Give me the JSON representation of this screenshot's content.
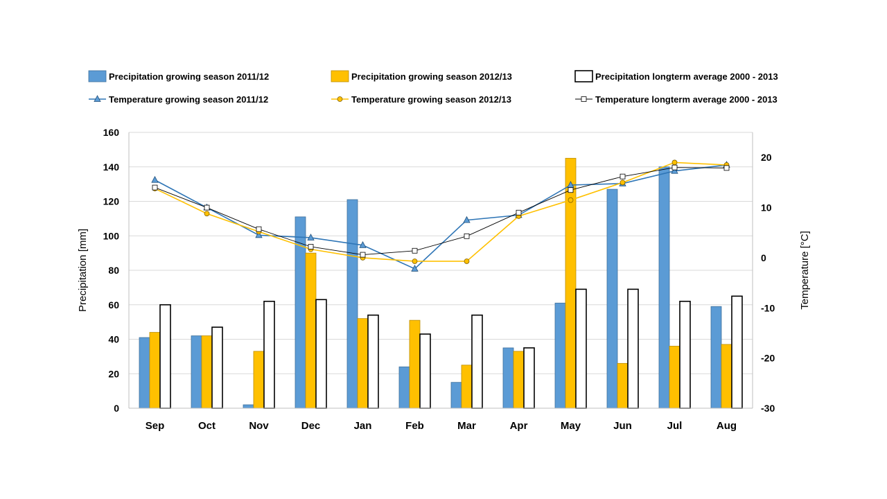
{
  "chart_data": {
    "type": "bar+line",
    "categories": [
      "Sep",
      "Oct",
      "Nov",
      "Dec",
      "Jan",
      "Feb",
      "Mar",
      "Apr",
      "May",
      "Jun",
      "Jul",
      "Aug"
    ],
    "ylabel_left": "Precipitation [mm]",
    "ylabel_right": "Temperature [°C]",
    "ylim_left": [
      0,
      160
    ],
    "ylim_right": [
      -30,
      25
    ],
    "yticks_left": [
      0,
      20,
      40,
      60,
      80,
      100,
      120,
      140,
      160
    ],
    "yticks_right": [
      -30,
      -20,
      -10,
      0,
      10,
      20
    ],
    "grid": true,
    "legend_position": "top",
    "bar_series": [
      {
        "name": "Precipitation growing season 2011/12",
        "color": "#5b9bd5",
        "values": [
          41,
          42,
          2,
          111,
          121,
          24,
          15,
          35,
          61,
          127,
          140,
          59
        ]
      },
      {
        "name": "Precipitation growing season 2012/13",
        "color": "#ffc000",
        "values": [
          44,
          42,
          33,
          90,
          52,
          51,
          25,
          33,
          145,
          26,
          36,
          37
        ]
      },
      {
        "name": "Precipitation longterm average 2000 - 2013",
        "color": "#ffffff",
        "values": [
          60,
          47,
          62,
          63,
          54,
          43,
          54,
          35,
          69,
          69,
          62,
          65
        ]
      }
    ],
    "line_series": [
      {
        "name": "Temperature growing season 2011/12",
        "color": "#2e75b6",
        "marker": "triangle",
        "values": [
          15.5,
          10,
          4.5,
          4,
          2.5,
          -2.2,
          7.5,
          8.5,
          14.5,
          14.8,
          17.3,
          18.5
        ]
      },
      {
        "name": "Temperature growing season 2012/13",
        "color": "#ffc000",
        "marker": "circle",
        "values": [
          13.8,
          8.8,
          5.2,
          1.7,
          0,
          -0.7,
          -0.7,
          8.3,
          11.5,
          15,
          19,
          18.5
        ]
      },
      {
        "name": "Temperature longterm average 2000 - 2013",
        "color": "#000000",
        "marker": "square",
        "values": [
          14,
          10,
          5.7,
          2.2,
          0.6,
          1.4,
          4.3,
          9,
          13.5,
          16.2,
          18,
          17.9
        ]
      }
    ]
  }
}
